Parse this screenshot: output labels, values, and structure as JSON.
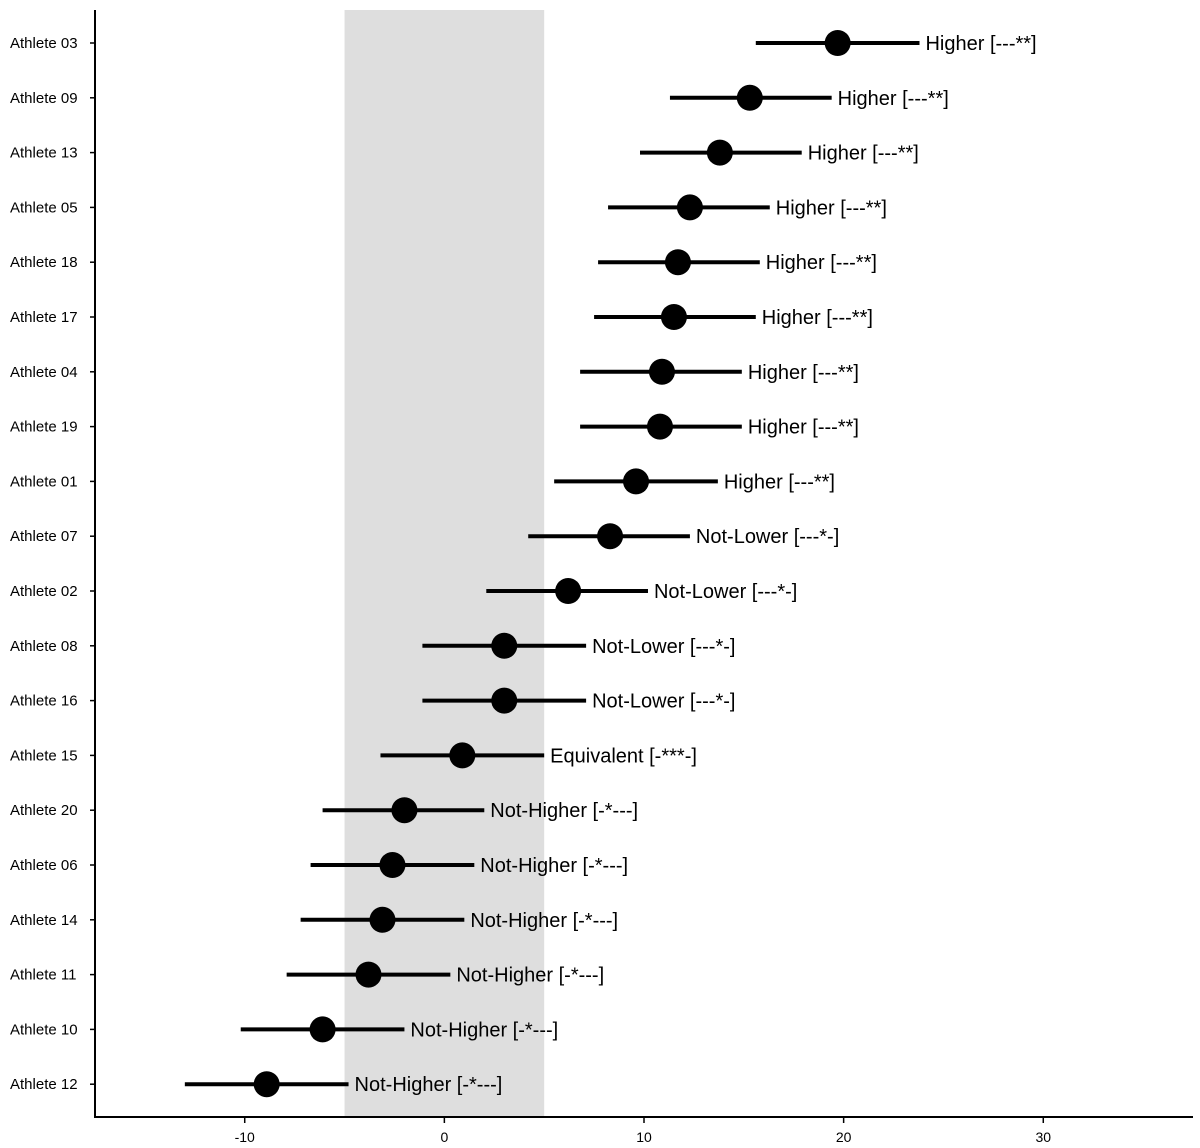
{
  "chart_data": {
    "type": "scatter",
    "title": "",
    "xlabel": "",
    "ylabel": "",
    "xlim": [
      -17.5,
      37.5
    ],
    "x_ticks": [
      -10,
      0,
      10,
      20,
      30
    ],
    "x_tick_labels": [
      "-10",
      "0",
      "10",
      "20",
      "30"
    ],
    "grid": false,
    "equivalence_band": [
      -5,
      5
    ],
    "colors": {
      "band": "#dedede",
      "marks": "#000000"
    },
    "rows": [
      {
        "athlete": "Athlete 03",
        "estimate": 19.7,
        "lower": 15.6,
        "upper": 23.8,
        "label": "Higher [---**]"
      },
      {
        "athlete": "Athlete 09",
        "estimate": 15.3,
        "lower": 11.3,
        "upper": 19.4,
        "label": "Higher [---**]"
      },
      {
        "athlete": "Athlete 13",
        "estimate": 13.8,
        "lower": 9.8,
        "upper": 17.9,
        "label": "Higher [---**]"
      },
      {
        "athlete": "Athlete 05",
        "estimate": 12.3,
        "lower": 8.2,
        "upper": 16.3,
        "label": "Higher [---**]"
      },
      {
        "athlete": "Athlete 18",
        "estimate": 11.7,
        "lower": 7.7,
        "upper": 15.8,
        "label": "Higher [---**]"
      },
      {
        "athlete": "Athlete 17",
        "estimate": 11.5,
        "lower": 7.5,
        "upper": 15.6,
        "label": "Higher [---**]"
      },
      {
        "athlete": "Athlete 04",
        "estimate": 10.9,
        "lower": 6.8,
        "upper": 14.9,
        "label": "Higher [---**]"
      },
      {
        "athlete": "Athlete 19",
        "estimate": 10.8,
        "lower": 6.8,
        "upper": 14.9,
        "label": "Higher [---**]"
      },
      {
        "athlete": "Athlete 01",
        "estimate": 9.6,
        "lower": 5.5,
        "upper": 13.7,
        "label": "Higher [---**]"
      },
      {
        "athlete": "Athlete 07",
        "estimate": 8.3,
        "lower": 4.2,
        "upper": 12.3,
        "label": "Not-Lower [---*-]"
      },
      {
        "athlete": "Athlete 02",
        "estimate": 6.2,
        "lower": 2.1,
        "upper": 10.2,
        "label": "Not-Lower [---*-]"
      },
      {
        "athlete": "Athlete 08",
        "estimate": 3.0,
        "lower": -1.1,
        "upper": 7.1,
        "label": "Not-Lower [---*-]"
      },
      {
        "athlete": "Athlete 16",
        "estimate": 3.0,
        "lower": -1.1,
        "upper": 7.1,
        "label": "Not-Lower [---*-]"
      },
      {
        "athlete": "Athlete 15",
        "estimate": 0.9,
        "lower": -3.2,
        "upper": 5.0,
        "label": "Equivalent [-***-]"
      },
      {
        "athlete": "Athlete 20",
        "estimate": -2.0,
        "lower": -6.1,
        "upper": 2.0,
        "label": "Not-Higher [-*---]"
      },
      {
        "athlete": "Athlete 06",
        "estimate": -2.6,
        "lower": -6.7,
        "upper": 1.5,
        "label": "Not-Higher [-*---]"
      },
      {
        "athlete": "Athlete 14",
        "estimate": -3.1,
        "lower": -7.2,
        "upper": 1.0,
        "label": "Not-Higher [-*---]"
      },
      {
        "athlete": "Athlete 11",
        "estimate": -3.8,
        "lower": -7.9,
        "upper": 0.3,
        "label": "Not-Higher [-*---]"
      },
      {
        "athlete": "Athlete 10",
        "estimate": -6.1,
        "lower": -10.2,
        "upper": -2.0,
        "label": "Not-Higher [-*---]"
      },
      {
        "athlete": "Athlete 12",
        "estimate": -8.9,
        "lower": -13.0,
        "upper": -4.8,
        "label": "Not-Higher [-*---]"
      }
    ]
  }
}
